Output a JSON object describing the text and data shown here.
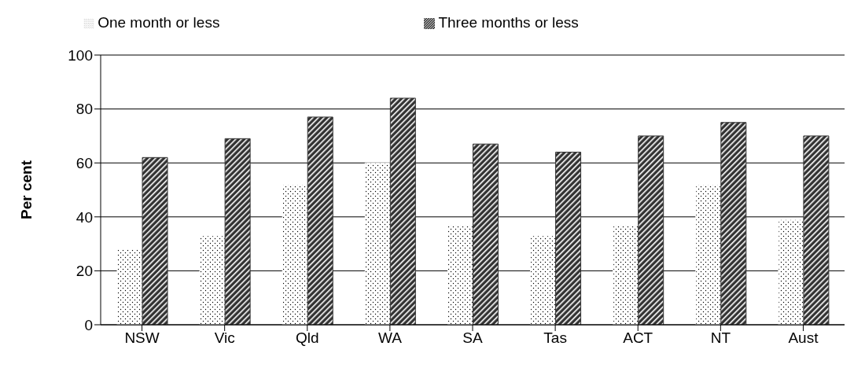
{
  "chart_data": {
    "type": "bar",
    "ylabel": "Per cent",
    "categories": [
      "NSW",
      "Vic",
      "Qld",
      "WA",
      "SA",
      "Tas",
      "ACT",
      "NT",
      "Aust"
    ],
    "series": [
      {
        "name": "One month or less",
        "color": "#ffffff",
        "values": [
          28,
          33,
          52,
          60,
          37,
          33,
          37,
          52,
          39
        ]
      },
      {
        "name": "Three months or less",
        "color": "#333333",
        "values": [
          62,
          69,
          77,
          84,
          67,
          64,
          70,
          75,
          70
        ]
      }
    ],
    "ylim": [
      0,
      100
    ],
    "yticks": [
      0,
      20,
      40,
      60,
      80,
      100
    ],
    "grid": "y",
    "legend": "top"
  }
}
